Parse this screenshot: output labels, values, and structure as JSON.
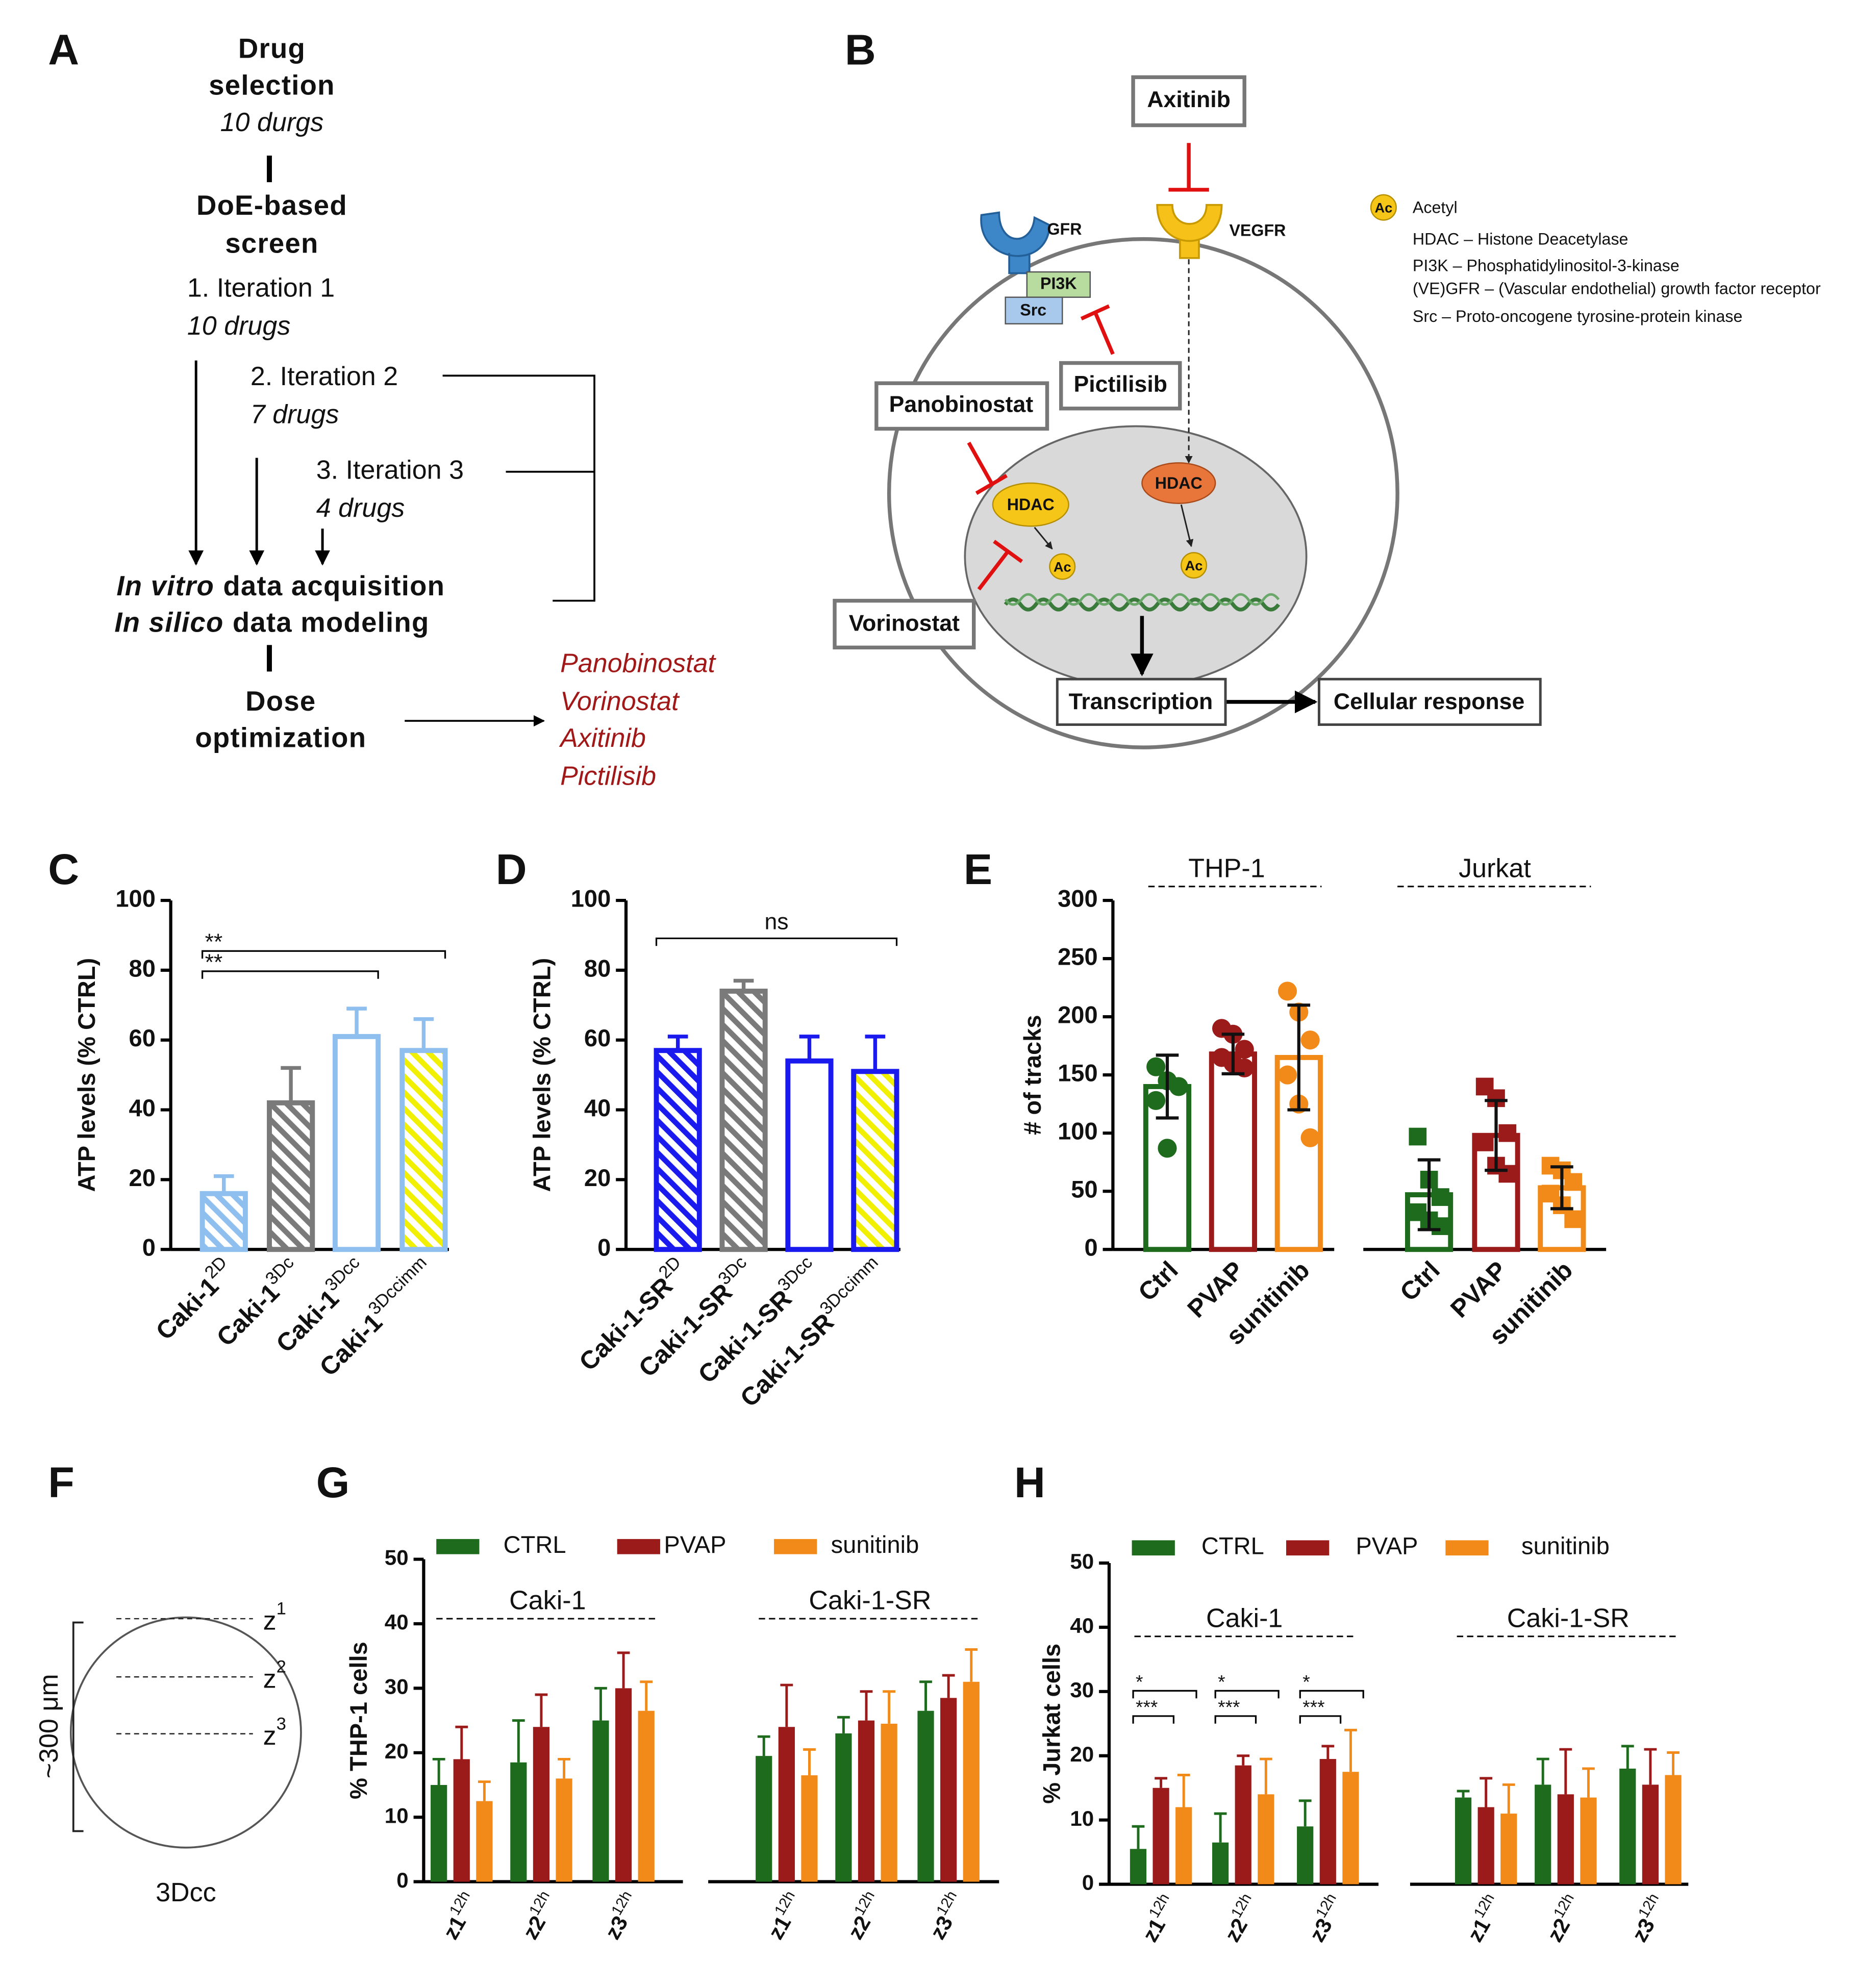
{
  "panel_a": {
    "label": "A",
    "title_lines": [
      "Drug",
      "selection"
    ],
    "title_note": "10 durgs",
    "screen_lines": [
      "DoE-based",
      "screen"
    ],
    "iterations": [
      {
        "name": "1. Iteration 1",
        "note": "10 drugs"
      },
      {
        "name": "2. Iteration 2",
        "note": "7 drugs"
      },
      {
        "name": "3. Iteration 3",
        "note": "4 drugs"
      }
    ],
    "acquisition": [
      {
        "italic": "In vitro",
        "rest": "data acquisition"
      },
      {
        "italic": "In silico",
        "rest": "data modeling"
      }
    ],
    "dose_lines": [
      "Dose",
      "optimization"
    ],
    "selected": [
      "Panobinostat",
      "Vorinostat",
      "Axitinib",
      "Pictilisib"
    ]
  },
  "panel_b": {
    "label": "B",
    "drugs": [
      "Axitinib",
      "Pictilisib",
      "Panobinostat",
      "Vorinostat"
    ],
    "receptors": [
      "GFR",
      "VEGFR"
    ],
    "kinases": [
      "PI3K",
      "Src"
    ],
    "enzymes": [
      "HDAC",
      "HDAC"
    ],
    "acetyl": [
      "Ac",
      "Ac"
    ],
    "outputs": [
      "Transcription",
      "Cellular response"
    ],
    "legend_symbol": "Ac",
    "legend": [
      "Acetyl",
      "HDAC – Histone Deacetylase",
      "PI3K – Phosphatidylinositol-3-kinase",
      "(VE)GFR – (Vascular endothelial) growth factor receptor",
      "Src – Proto-oncogene tyrosine-protein kinase"
    ]
  },
  "panel_f": {
    "label": "F",
    "planes": [
      {
        "name": "z",
        "sup": "1"
      },
      {
        "name": "z",
        "sup": "2"
      },
      {
        "name": "z",
        "sup": "3"
      }
    ],
    "size": "~300 μm",
    "caption": "3Dcc"
  },
  "chart_data": [
    {
      "type": "bar",
      "label": "C",
      "ylabel": "ATP levels (% CTRL)",
      "categories": [
        "Caki-1",
        "Caki-1",
        "Caki-1",
        "Caki-1"
      ],
      "category_superscripts": [
        "2D",
        "3Dc",
        "3Dcc",
        "3Dccimm"
      ],
      "values": [
        16,
        42,
        61,
        57
      ],
      "errors": [
        5,
        10,
        8,
        9
      ],
      "edge_colors": [
        "#8fbfef",
        "#7a7a7a",
        "#8fbfef",
        "#8fbfef"
      ],
      "hatch_colors": [
        "#8fbfef",
        "#7a7a7a",
        null,
        "#f0f000"
      ],
      "ylim": [
        0,
        100
      ],
      "yticks": [
        0,
        20,
        40,
        60,
        80,
        100
      ],
      "annotations": [
        {
          "text": "**",
          "from": 0,
          "to": 3
        },
        {
          "text": "**",
          "from": 0,
          "to": 2
        }
      ]
    },
    {
      "type": "bar",
      "label": "D",
      "ylabel": "ATP levels (% CTRL)",
      "categories": [
        "Caki-1-SR",
        "Caki-1-SR",
        "Caki-1-SR",
        "Caki-1-SR"
      ],
      "category_superscripts": [
        "2D",
        "3Dc",
        "3Dcc",
        "3Dccimm"
      ],
      "values": [
        57,
        74,
        54,
        51
      ],
      "errors": [
        4,
        3,
        7,
        10
      ],
      "edge_colors": [
        "#1a1aee",
        "#7a7a7a",
        "#1a1aee",
        "#1a1aee"
      ],
      "hatch_colors": [
        "#1a1aee",
        "#7a7a7a",
        null,
        "#f0f000"
      ],
      "ylim": [
        0,
        100
      ],
      "yticks": [
        0,
        20,
        40,
        60,
        80,
        100
      ],
      "annotations": [
        {
          "text": "ns",
          "from": 0,
          "to": 3
        }
      ]
    },
    {
      "type": "scatter_bar",
      "label": "E",
      "ylabel": "# of tracks",
      "colors": [
        "#1e6b1e",
        "#9b1b1b",
        "#f28a1a"
      ],
      "groups": [
        {
          "name": "THP-1",
          "marker": "circle",
          "categories": [
            "Ctrl",
            "PVAP",
            "sunitinib"
          ],
          "values": [
            140,
            168,
            165
          ],
          "errors": [
            27,
            17,
            45
          ],
          "points": [
            [
              157,
              145,
              140,
              128,
              87
            ],
            [
              190,
              185,
              172,
              165,
              160,
              156
            ],
            [
              222,
              204,
              180,
              150,
              125,
              96
            ]
          ]
        },
        {
          "name": "Jurkat",
          "marker": "square",
          "categories": [
            "Ctrl",
            "PVAP",
            "sunitinib"
          ],
          "values": [
            47,
            98,
            53
          ],
          "errors": [
            30,
            30,
            18
          ],
          "points": [
            [
              97,
              60,
              45,
              32,
              25,
              20
            ],
            [
              140,
              130,
              100,
              92,
              72,
              65
            ],
            [
              72,
              68,
              58,
              48,
              38,
              26
            ]
          ]
        }
      ],
      "ylim": [
        0,
        300
      ],
      "yticks": [
        0,
        50,
        100,
        150,
        200,
        250,
        300
      ]
    },
    {
      "type": "grouped_bar",
      "label": "G",
      "ylabel": "% THP-1 cells",
      "categories": [
        "z1",
        "z2",
        "z3",
        "z1",
        "z2",
        "z3"
      ],
      "category_superscripts": [
        "12h",
        "12h",
        "12h",
        "12h",
        "12h",
        "12h"
      ],
      "group_labels": [
        "Caki-1",
        "Caki-1-SR"
      ],
      "series": [
        {
          "name": "CTRL",
          "color": "#1e6b1e",
          "values": [
            15,
            18.5,
            25,
            19.5,
            23,
            26.5
          ],
          "errors": [
            4,
            6.5,
            5,
            3,
            2.5,
            4.5
          ]
        },
        {
          "name": "PVAP",
          "color": "#9b1b1b",
          "values": [
            19,
            24,
            30,
            24,
            25,
            28.5
          ],
          "errors": [
            5,
            5,
            5.5,
            6.5,
            4.5,
            3.5
          ]
        },
        {
          "name": "sunitinib",
          "color": "#f28a1a",
          "values": [
            12.5,
            16,
            26.5,
            16.5,
            24.5,
            31
          ],
          "errors": [
            3,
            3,
            4.5,
            4,
            5,
            5
          ]
        }
      ],
      "ylim": [
        0,
        50
      ],
      "yticks": [
        0,
        10,
        20,
        30,
        40,
        50
      ]
    },
    {
      "type": "grouped_bar",
      "label": "H",
      "ylabel": "% Jurkat cells",
      "categories": [
        "z1",
        "z2",
        "z3",
        "z1",
        "z2",
        "z3"
      ],
      "category_superscripts": [
        "12h",
        "12h",
        "12h",
        "12h",
        "12h",
        "12h"
      ],
      "group_labels": [
        "Caki-1",
        "Caki-1-SR"
      ],
      "series": [
        {
          "name": "CTRL",
          "color": "#1e6b1e",
          "values": [
            5.5,
            6.5,
            9,
            13.5,
            15.5,
            18
          ],
          "errors": [
            3.5,
            4.5,
            4,
            1,
            4,
            3.5
          ]
        },
        {
          "name": "PVAP",
          "color": "#9b1b1b",
          "values": [
            15,
            18.5,
            19.5,
            12,
            14,
            15.5
          ],
          "errors": [
            1.5,
            1.5,
            2,
            4.5,
            7,
            5.5
          ]
        },
        {
          "name": "sunitinib",
          "color": "#f28a1a",
          "values": [
            12,
            14,
            17.5,
            11,
            13.5,
            17
          ],
          "errors": [
            5,
            5.5,
            6.5,
            4.5,
            4.5,
            3.5
          ]
        }
      ],
      "ylim": [
        0,
        50
      ],
      "yticks": [
        0,
        10,
        20,
        30,
        40,
        50
      ],
      "annotations": [
        {
          "text": "*",
          "category": 0,
          "from": 0,
          "to": 2
        },
        {
          "text": "***",
          "category": 0,
          "from": 0,
          "to": 1
        },
        {
          "text": "*",
          "category": 1,
          "from": 0,
          "to": 2
        },
        {
          "text": "***",
          "category": 1,
          "from": 0,
          "to": 1
        },
        {
          "text": "*",
          "category": 2,
          "from": 0,
          "to": 2
        },
        {
          "text": "***",
          "category": 2,
          "from": 0,
          "to": 1
        }
      ]
    }
  ]
}
